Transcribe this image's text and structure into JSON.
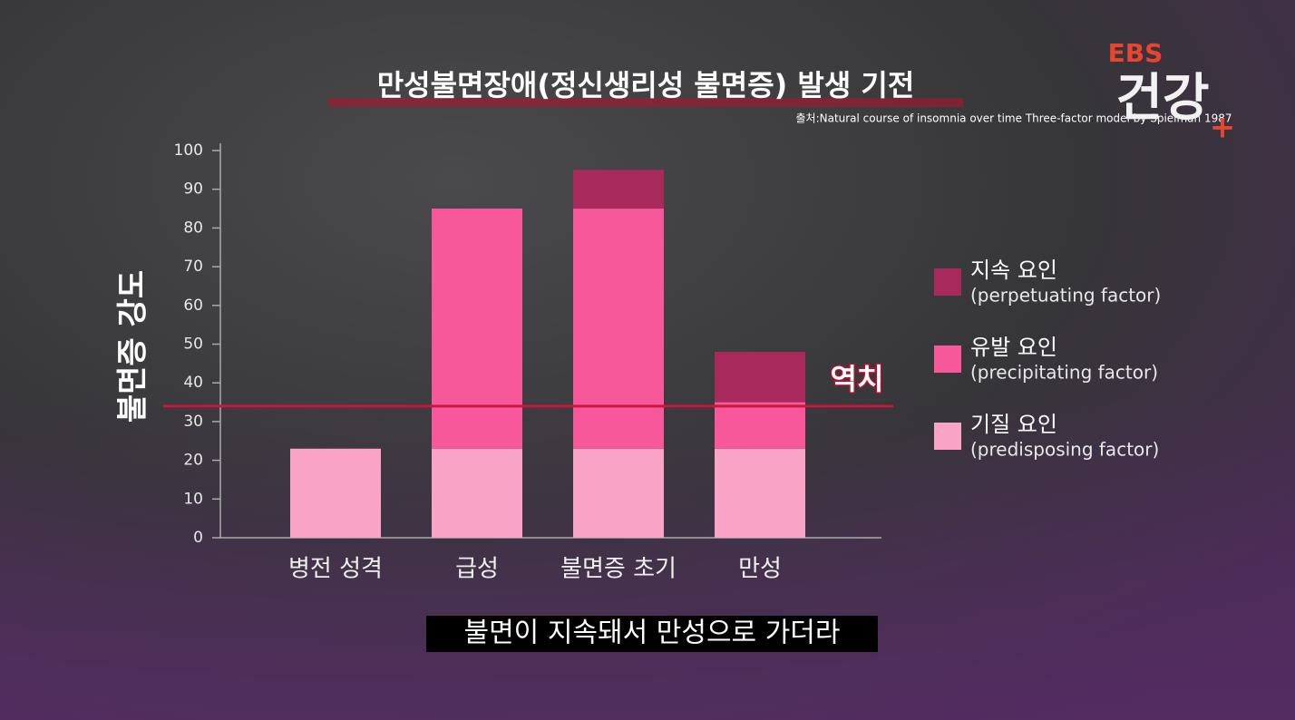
{
  "chart_data": {
    "type": "stacked-bar",
    "title": "만성불면장애(정신생리성 불면증) 발생 기전",
    "source": "출처:Natural course of insomnia over time Three-factor model by Spielman 1987",
    "y_label": "불면증 강도",
    "categories": [
      "병전 성격",
      "급성",
      "불면증 초기",
      "만성"
    ],
    "series": [
      {
        "name": "기질 요인",
        "name_en": "(predisposing factor)",
        "color": "#f9a3c7",
        "values": [
          23,
          23,
          23,
          23
        ]
      },
      {
        "name": "유발 요인",
        "name_en": "(precipitating factor)",
        "color": "#f6589a",
        "values": [
          null,
          62,
          62,
          12
        ]
      },
      {
        "name": "지속 요인",
        "name_en": "(perpetuating factor)",
        "color": "#a82a5c",
        "values": [
          null,
          null,
          10,
          13
        ]
      }
    ],
    "ylim": [
      0,
      100
    ],
    "yticks": [
      0,
      10,
      20,
      30,
      40,
      50,
      60,
      70,
      80,
      90,
      100
    ],
    "threshold": {
      "value": 34,
      "label": "역치",
      "color": "#c8163e"
    },
    "caption": "불면이 지속돼서 만성으로 가더라",
    "logo": {
      "top": "EBS",
      "main": "건강"
    }
  }
}
